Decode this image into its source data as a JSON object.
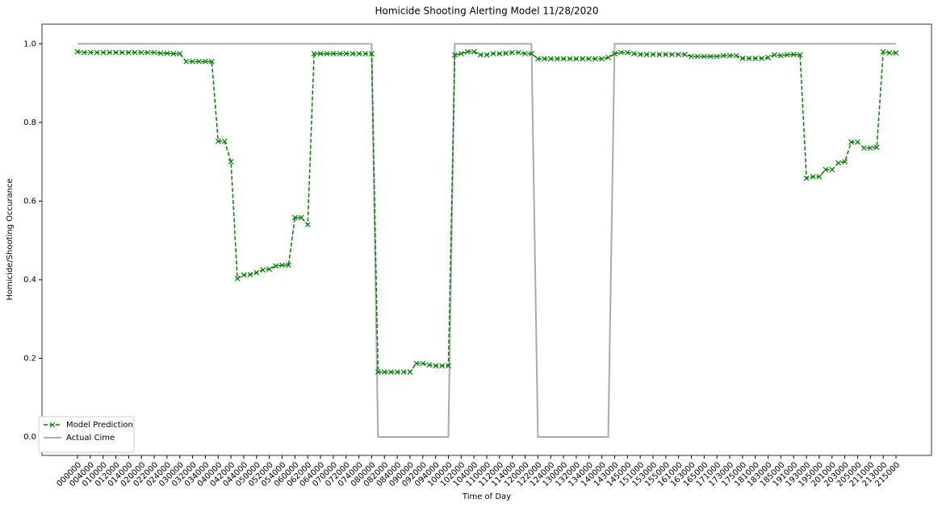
{
  "chart_data": {
    "type": "line",
    "title": "Homicide Shooting Alerting Model 11/28/2020",
    "xlabel": "Time of Day",
    "ylabel": "Homicide/Shooting Occurance",
    "categories": [
      "000000",
      null,
      "004000",
      null,
      "010000",
      null,
      "012000",
      null,
      "014000",
      null,
      "020000",
      null,
      "022000",
      null,
      "024000",
      null,
      "030000",
      null,
      "032000",
      null,
      "034000",
      null,
      "040000",
      null,
      "042000",
      null,
      "044000",
      null,
      "050000",
      null,
      "052000",
      null,
      "054000",
      null,
      "060000",
      null,
      "062000",
      null,
      "064000",
      null,
      "070000",
      null,
      "072000",
      null,
      "074000",
      null,
      "080000",
      null,
      "082000",
      null,
      "084000",
      null,
      "090000",
      null,
      "092000",
      null,
      "094000",
      null,
      "100000",
      null,
      "102000",
      null,
      "104000",
      null,
      "110000",
      null,
      "112000",
      null,
      "114000",
      null,
      "120000",
      null,
      "122000",
      null,
      "124000",
      null,
      "130000",
      null,
      "132000",
      null,
      "134000",
      null,
      "140000",
      null,
      "143000",
      null,
      "145000",
      null,
      "151000",
      null,
      "153000",
      null,
      "155000",
      null,
      "161000",
      null,
      "163000",
      null,
      "165000",
      null,
      "171000",
      null,
      "173000",
      null,
      "175000",
      null,
      "181000",
      null,
      "183000",
      null,
      "185000",
      null,
      "191000",
      null,
      "193000",
      null,
      "195000",
      null,
      "201000",
      null,
      "203000",
      null,
      "205000",
      null,
      "211000",
      null,
      "213000",
      null,
      "215000"
    ],
    "series": [
      {
        "name": "Model Prediction",
        "color": "#008000",
        "dash": "dashed",
        "marker": "x",
        "values": [
          0.98,
          0.978,
          0.978,
          0.978,
          0.978,
          0.978,
          0.978,
          0.978,
          0.978,
          0.978,
          0.978,
          0.978,
          0.978,
          0.976,
          0.976,
          0.975,
          0.975,
          0.955,
          0.955,
          0.955,
          0.955,
          0.955,
          0.752,
          0.752,
          0.7,
          0.403,
          0.412,
          0.413,
          0.418,
          0.425,
          0.427,
          0.435,
          0.437,
          0.437,
          0.558,
          0.558,
          0.54,
          0.975,
          0.975,
          0.975,
          0.975,
          0.975,
          0.975,
          0.975,
          0.975,
          0.975,
          0.975,
          0.165,
          0.165,
          0.165,
          0.165,
          0.165,
          0.165,
          0.187,
          0.187,
          0.183,
          0.181,
          0.181,
          0.181,
          0.972,
          0.975,
          0.98,
          0.98,
          0.972,
          0.972,
          0.975,
          0.975,
          0.976,
          0.978,
          0.978,
          0.975,
          0.975,
          0.962,
          0.962,
          0.962,
          0.962,
          0.962,
          0.962,
          0.962,
          0.962,
          0.962,
          0.962,
          0.962,
          0.965,
          0.975,
          0.978,
          0.978,
          0.975,
          0.973,
          0.973,
          0.973,
          0.973,
          0.973,
          0.973,
          0.973,
          0.973,
          0.968,
          0.968,
          0.968,
          0.968,
          0.968,
          0.97,
          0.97,
          0.97,
          0.963,
          0.963,
          0.963,
          0.963,
          0.965,
          0.972,
          0.97,
          0.972,
          0.973,
          0.972,
          0.658,
          0.662,
          0.662,
          0.68,
          0.68,
          0.697,
          0.7,
          0.75,
          0.75,
          0.735,
          0.735,
          0.737,
          0.98,
          0.977,
          0.977
        ]
      },
      {
        "name": "Actual Cime",
        "color": "#aaaaaa",
        "dash": "solid",
        "marker": "none",
        "values": [
          1,
          1,
          1,
          1,
          1,
          1,
          1,
          1,
          1,
          1,
          1,
          1,
          1,
          1,
          1,
          1,
          1,
          1,
          1,
          1,
          1,
          1,
          1,
          1,
          1,
          1,
          1,
          1,
          1,
          1,
          1,
          1,
          1,
          1,
          1,
          1,
          1,
          1,
          1,
          1,
          1,
          1,
          1,
          1,
          1,
          1,
          1,
          0,
          0,
          0,
          0,
          0,
          0,
          0,
          0,
          0,
          0,
          0,
          0,
          1,
          1,
          1,
          1,
          1,
          1,
          1,
          1,
          1,
          1,
          1,
          1,
          1,
          0,
          0,
          0,
          0,
          0,
          0,
          0,
          0,
          0,
          0,
          0,
          0,
          1,
          1,
          1,
          1,
          1,
          1,
          1,
          1,
          1,
          1,
          1,
          1,
          1,
          1,
          1,
          1,
          1,
          1,
          1,
          1,
          1,
          1,
          1,
          1,
          1,
          1,
          1,
          1,
          1,
          1,
          1,
          1,
          1,
          1,
          1,
          1,
          1,
          1,
          1,
          1,
          1,
          1,
          1,
          1,
          1
        ]
      }
    ],
    "ylim": [
      -0.047,
      1.05
    ],
    "yticks": [
      {
        "value": 0,
        "label": "0.0"
      },
      0.2,
      0.4,
      0.6,
      0.8,
      {
        "value": 1,
        "label": "1.0"
      }
    ],
    "grid": false,
    "legend": "lower left"
  }
}
